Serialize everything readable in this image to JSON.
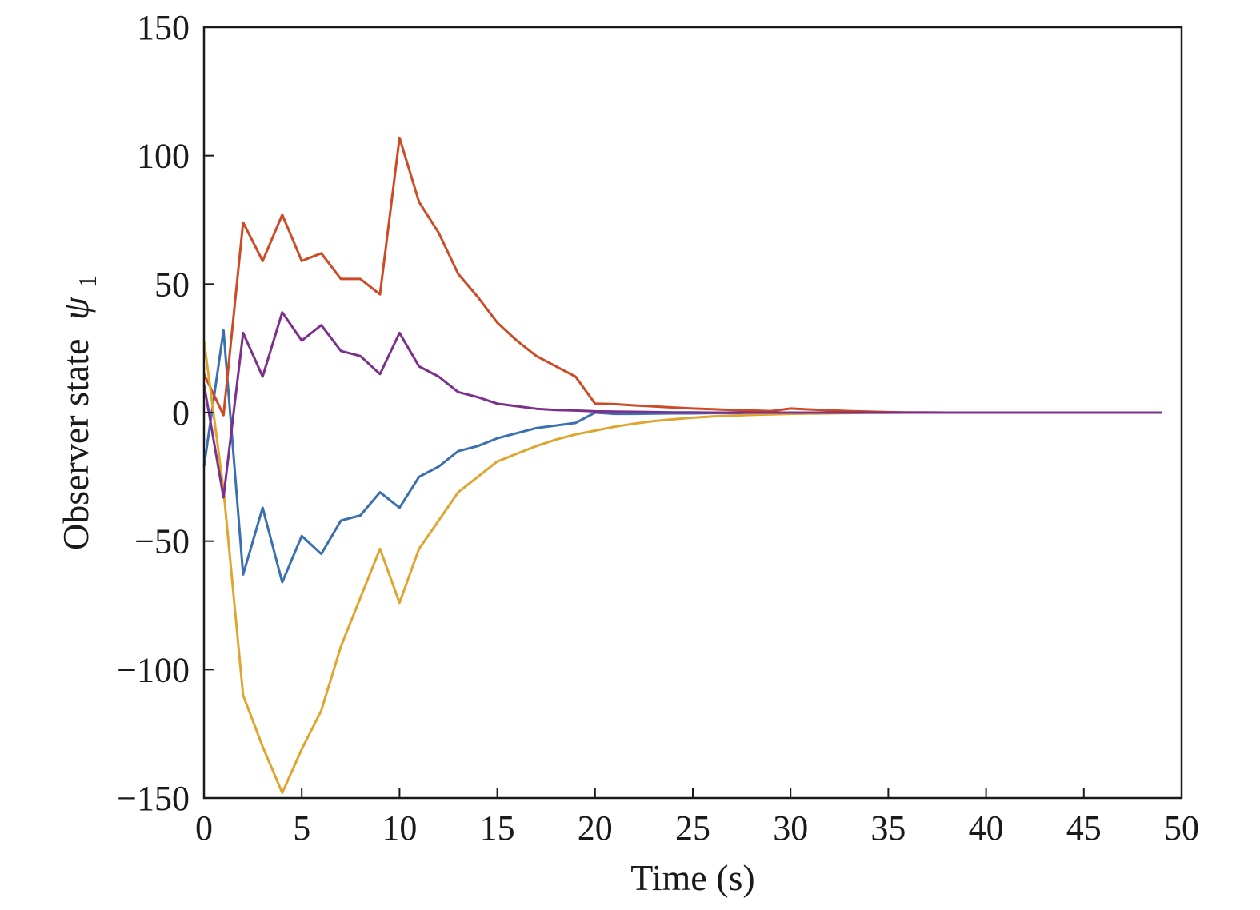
{
  "chart_data": {
    "type": "line",
    "title": "",
    "xlabel": "Time (s)",
    "ylabel": "Observer state",
    "ylabel_symbol": "ψ",
    "ylabel_subscript": "1",
    "xlim": [
      0,
      50
    ],
    "ylim": [
      -150,
      150
    ],
    "xticks": [
      0,
      5,
      10,
      15,
      20,
      25,
      30,
      35,
      40,
      45,
      50
    ],
    "yticks": [
      -150,
      -100,
      -50,
      0,
      50,
      100,
      150
    ],
    "xtick_labels": [
      "0",
      "5",
      "10",
      "15",
      "20",
      "25",
      "30",
      "35",
      "40",
      "45",
      "50"
    ],
    "ytick_labels": [
      "−150",
      "−100",
      "−50",
      "0",
      "50",
      "100",
      "150"
    ],
    "grid": false,
    "legend": "none",
    "x": [
      0,
      1,
      2,
      3,
      4,
      5,
      6,
      7,
      8,
      9,
      10,
      11,
      12,
      13,
      14,
      15,
      16,
      17,
      18,
      19,
      20,
      21,
      22,
      23,
      24,
      25,
      26,
      27,
      28,
      29,
      30,
      31,
      32,
      33,
      34,
      35,
      36,
      37,
      38,
      39,
      40,
      41,
      42,
      43,
      44,
      45,
      46,
      47,
      48,
      49
    ],
    "series": [
      {
        "color": "#3a6fb0",
        "values": [
          -21,
          32,
          -63,
          -37,
          -66,
          -48,
          -55,
          -42,
          -40,
          -31,
          -37,
          -25,
          -21,
          -15,
          -13,
          -10,
          -8,
          -6,
          -5,
          -4,
          0,
          -0.5,
          -0.5,
          -0.4,
          -0.3,
          -0.3,
          -0.2,
          -0.2,
          -0.1,
          -0.1,
          -0.1,
          -0.1,
          0,
          0,
          0,
          0,
          0,
          0,
          0,
          0,
          0,
          0,
          0,
          0,
          0,
          0,
          0,
          0,
          0,
          0
        ]
      },
      {
        "color": "#cc4a24",
        "values": [
          15,
          -1,
          74,
          59,
          77,
          59,
          62,
          52,
          52,
          46,
          107,
          82,
          70,
          54,
          45,
          35,
          28,
          22,
          18,
          14,
          3.5,
          3.3,
          2.8,
          2.4,
          2,
          1.6,
          1.3,
          1,
          0.8,
          0.6,
          1.6,
          1.2,
          0.9,
          0.6,
          0.4,
          0.2,
          0.1,
          0.1,
          0,
          0,
          0,
          0,
          0,
          0,
          0,
          0,
          0,
          0,
          0,
          0
        ]
      },
      {
        "color": "#e0a530",
        "values": [
          28,
          -30,
          -110,
          -130,
          -148,
          -131,
          -116,
          -91,
          -72,
          -53,
          -74,
          -53,
          -42,
          -31,
          -25,
          -19,
          -16,
          -13,
          -10.5,
          -8.5,
          -7,
          -5.5,
          -4.3,
          -3.3,
          -2.6,
          -2,
          -1.5,
          -1.2,
          -0.9,
          -0.7,
          -0.5,
          -0.4,
          -0.3,
          -0.2,
          -0.1,
          -0.1,
          0,
          0,
          0,
          0,
          0,
          0,
          0,
          0,
          0,
          0,
          0,
          0,
          0,
          0
        ]
      },
      {
        "color": "#7d2f8c",
        "values": [
          11,
          -33,
          31,
          14,
          39,
          28,
          34,
          24,
          22,
          15,
          31,
          18,
          14,
          8,
          6,
          3.5,
          2.5,
          1.5,
          1,
          0.8,
          0.5,
          0.4,
          0.3,
          0.2,
          0.1,
          0.1,
          0,
          0,
          0,
          0,
          0,
          0,
          0,
          0,
          0,
          0,
          0,
          0,
          0,
          0,
          0,
          0,
          0,
          0,
          0,
          0,
          0,
          0,
          0,
          0
        ]
      }
    ]
  }
}
